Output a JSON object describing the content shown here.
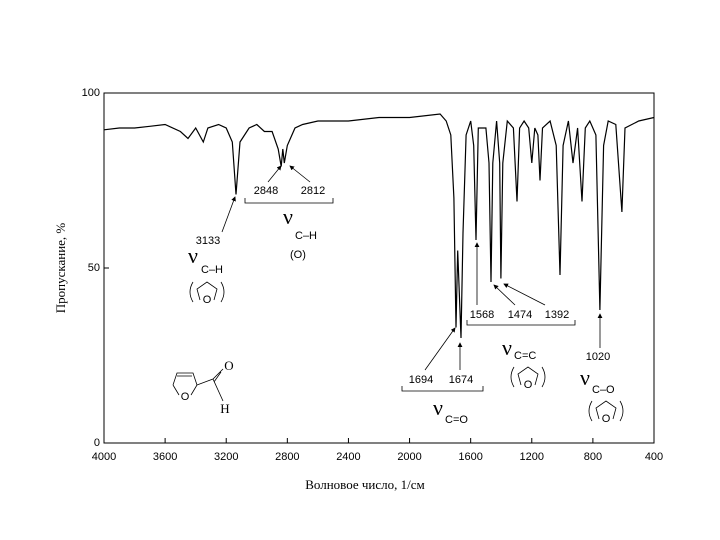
{
  "chart_data": {
    "type": "line",
    "x_label": "Волновое число, 1/см",
    "y_label": "Пропускание, %",
    "xlim": [
      4000,
      400
    ],
    "ylim": [
      0,
      100
    ],
    "xticks": [
      4000,
      3600,
      3200,
      2800,
      2400,
      2000,
      1600,
      1200,
      800,
      400
    ],
    "yticks": [
      0,
      50,
      100
    ],
    "grid": false,
    "series": [
      {
        "color": "#000000",
        "x": [
          4000,
          3900,
          3800,
          3700,
          3600,
          3500,
          3450,
          3400,
          3350,
          3320,
          3250,
          3200,
          3160,
          3136,
          3110,
          3050,
          3000,
          2950,
          2900,
          2860,
          2840,
          2830,
          2820,
          2800,
          2750,
          2700,
          2600,
          2400,
          2200,
          2000,
          1800,
          1760,
          1730,
          1710,
          1696,
          1685,
          1663,
          1650,
          1630,
          1600,
          1580,
          1565,
          1550,
          1500,
          1480,
          1467,
          1455,
          1430,
          1410,
          1402,
          1390,
          1360,
          1320,
          1297,
          1280,
          1250,
          1220,
          1200,
          1180,
          1160,
          1146,
          1130,
          1080,
          1040,
          1015,
          995,
          960,
          930,
          900,
          871,
          850,
          820,
          780,
          754,
          730,
          700,
          650,
          610,
          590,
          500,
          400
        ],
        "values": [
          89.5,
          90,
          90,
          90.5,
          91,
          89,
          87,
          90,
          86,
          90,
          91,
          90,
          86,
          71,
          86,
          90,
          91,
          89,
          89,
          84,
          79,
          84,
          80,
          85,
          90,
          91,
          92,
          92,
          93,
          93,
          94,
          92,
          88,
          70,
          33,
          55,
          30,
          60,
          88,
          92,
          85,
          58,
          90,
          90,
          80,
          46,
          80,
          92,
          80,
          47,
          80,
          92,
          90,
          69,
          90,
          92,
          90,
          80,
          90,
          88,
          75,
          90,
          92,
          85,
          48,
          85,
          92,
          80,
          90,
          69,
          90,
          92,
          88,
          38,
          85,
          92,
          91,
          66,
          90,
          92,
          93
        ]
      }
    ],
    "annotations": {
      "peaks": [
        "3133",
        "2848",
        "2812",
        "1694",
        "1674",
        "1568",
        "1474",
        "1392",
        "1020"
      ],
      "modes": [
        {
          "symbol": "ν",
          "bond": "C–H"
        },
        {
          "symbol": "ν",
          "bond": "C–H"
        },
        {
          "symbol": "ν",
          "bond": "C=O"
        },
        {
          "symbol": "ν",
          "bond": "C=C"
        },
        {
          "symbol": "ν",
          "bond": "C–O"
        }
      ],
      "aldehyde_group": "(O)",
      "atom": "O",
      "hydrogen": "H"
    }
  }
}
